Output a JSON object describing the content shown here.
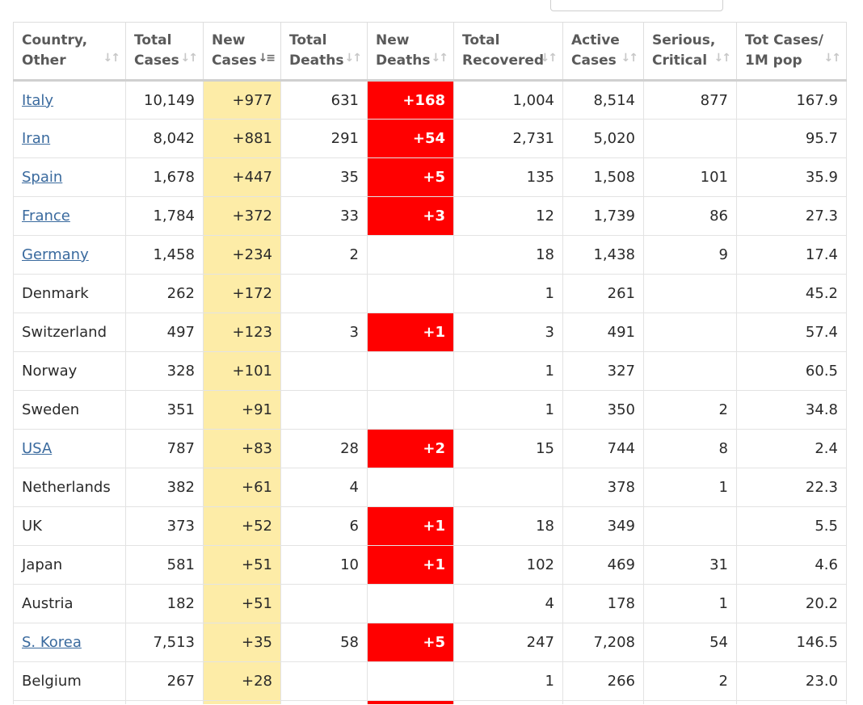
{
  "colors": {
    "new_cases_bg": "#fdeca7",
    "new_deaths_bg": "#ff0000",
    "link": "#3a6a9e"
  },
  "columns": [
    {
      "label": [
        "Country,",
        "Other"
      ],
      "sort_icon": "sort-icon"
    },
    {
      "label": [
        "Total",
        "Cases"
      ],
      "sort_icon": "sort-icon"
    },
    {
      "label": [
        "New",
        "Cases"
      ],
      "sort_icon": "sort-desc-icon"
    },
    {
      "label": [
        "Total",
        "Deaths"
      ],
      "sort_icon": "sort-icon"
    },
    {
      "label": [
        "New",
        "Deaths"
      ],
      "sort_icon": "sort-icon"
    },
    {
      "label": [
        "Total",
        "Recovered"
      ],
      "sort_icon": "sort-icon"
    },
    {
      "label": [
        "Active",
        "Cases"
      ],
      "sort_icon": "sort-icon"
    },
    {
      "label": [
        "Serious,",
        "Critical"
      ],
      "sort_icon": "sort-icon"
    },
    {
      "label": [
        "Tot Cases/",
        "1M pop"
      ],
      "sort_icon": "sort-icon"
    }
  ],
  "rows": [
    {
      "country": "Italy",
      "link": true,
      "total_cases": "10,149",
      "new_cases": "+977",
      "total_deaths": "631",
      "new_deaths": "+168",
      "total_recovered": "1,004",
      "active_cases": "8,514",
      "serious_critical": "877",
      "per_million": "167.9"
    },
    {
      "country": "Iran",
      "link": true,
      "total_cases": "8,042",
      "new_cases": "+881",
      "total_deaths": "291",
      "new_deaths": "+54",
      "total_recovered": "2,731",
      "active_cases": "5,020",
      "serious_critical": "",
      "per_million": "95.7"
    },
    {
      "country": "Spain",
      "link": true,
      "total_cases": "1,678",
      "new_cases": "+447",
      "total_deaths": "35",
      "new_deaths": "+5",
      "total_recovered": "135",
      "active_cases": "1,508",
      "serious_critical": "101",
      "per_million": "35.9"
    },
    {
      "country": "France",
      "link": true,
      "total_cases": "1,784",
      "new_cases": "+372",
      "total_deaths": "33",
      "new_deaths": "+3",
      "total_recovered": "12",
      "active_cases": "1,739",
      "serious_critical": "86",
      "per_million": "27.3"
    },
    {
      "country": "Germany",
      "link": true,
      "total_cases": "1,458",
      "new_cases": "+234",
      "total_deaths": "2",
      "new_deaths": "",
      "total_recovered": "18",
      "active_cases": "1,438",
      "serious_critical": "9",
      "per_million": "17.4"
    },
    {
      "country": "Denmark",
      "link": false,
      "total_cases": "262",
      "new_cases": "+172",
      "total_deaths": "",
      "new_deaths": "",
      "total_recovered": "1",
      "active_cases": "261",
      "serious_critical": "",
      "per_million": "45.2"
    },
    {
      "country": "Switzerland",
      "link": false,
      "total_cases": "497",
      "new_cases": "+123",
      "total_deaths": "3",
      "new_deaths": "+1",
      "total_recovered": "3",
      "active_cases": "491",
      "serious_critical": "",
      "per_million": "57.4"
    },
    {
      "country": "Norway",
      "link": false,
      "total_cases": "328",
      "new_cases": "+101",
      "total_deaths": "",
      "new_deaths": "",
      "total_recovered": "1",
      "active_cases": "327",
      "serious_critical": "",
      "per_million": "60.5"
    },
    {
      "country": "Sweden",
      "link": false,
      "total_cases": "351",
      "new_cases": "+91",
      "total_deaths": "",
      "new_deaths": "",
      "total_recovered": "1",
      "active_cases": "350",
      "serious_critical": "2",
      "per_million": "34.8"
    },
    {
      "country": "USA",
      "link": true,
      "total_cases": "787",
      "new_cases": "+83",
      "total_deaths": "28",
      "new_deaths": "+2",
      "total_recovered": "15",
      "active_cases": "744",
      "serious_critical": "8",
      "per_million": "2.4"
    },
    {
      "country": "Netherlands",
      "link": false,
      "total_cases": "382",
      "new_cases": "+61",
      "total_deaths": "4",
      "new_deaths": "",
      "total_recovered": "",
      "active_cases": "378",
      "serious_critical": "1",
      "per_million": "22.3"
    },
    {
      "country": "UK",
      "link": false,
      "total_cases": "373",
      "new_cases": "+52",
      "total_deaths": "6",
      "new_deaths": "+1",
      "total_recovered": "18",
      "active_cases": "349",
      "serious_critical": "",
      "per_million": "5.5"
    },
    {
      "country": "Japan",
      "link": false,
      "total_cases": "581",
      "new_cases": "+51",
      "total_deaths": "10",
      "new_deaths": "+1",
      "total_recovered": "102",
      "active_cases": "469",
      "serious_critical": "31",
      "per_million": "4.6"
    },
    {
      "country": "Austria",
      "link": false,
      "total_cases": "182",
      "new_cases": "+51",
      "total_deaths": "",
      "new_deaths": "",
      "total_recovered": "4",
      "active_cases": "178",
      "serious_critical": "1",
      "per_million": "20.2"
    },
    {
      "country": "S. Korea",
      "link": true,
      "total_cases": "7,513",
      "new_cases": "+35",
      "total_deaths": "58",
      "new_deaths": "+5",
      "total_recovered": "247",
      "active_cases": "7,208",
      "serious_critical": "54",
      "per_million": "146.5"
    },
    {
      "country": "Belgium",
      "link": false,
      "total_cases": "267",
      "new_cases": "+28",
      "total_deaths": "",
      "new_deaths": "",
      "total_recovered": "1",
      "active_cases": "266",
      "serious_critical": "2",
      "per_million": "23.0"
    }
  ]
}
